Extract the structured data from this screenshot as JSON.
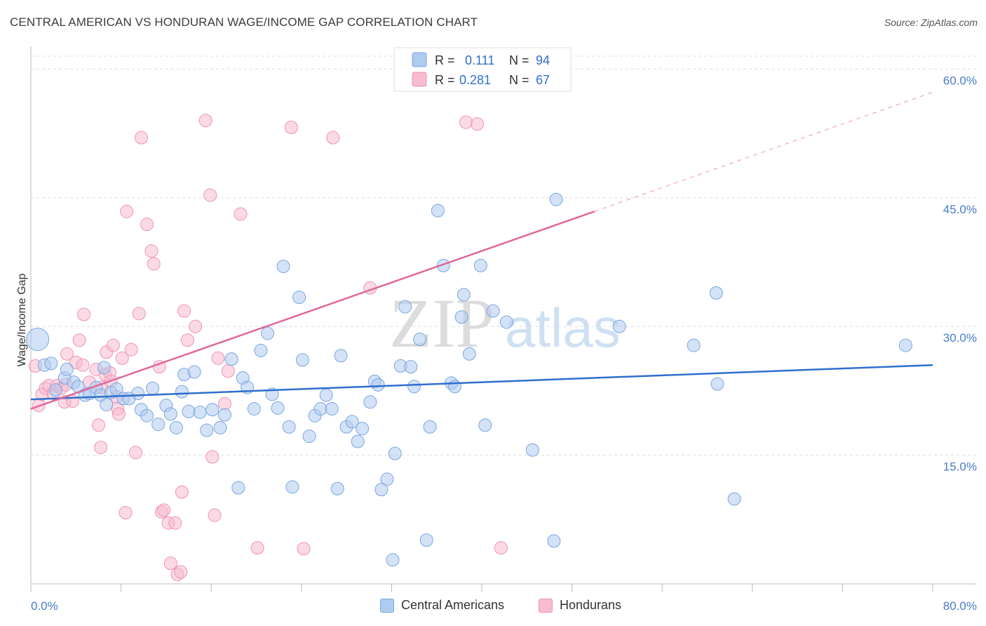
{
  "header": {
    "title": "CENTRAL AMERICAN VS HONDURAN WAGE/INCOME GAP CORRELATION CHART",
    "source": "Source: ZipAtlas.com"
  },
  "watermark": {
    "zip": "ZIP",
    "atlas": "atlas"
  },
  "legend": {
    "rows": [
      {
        "r_label": "R =",
        "r_value": "0.111",
        "n_label": "N =",
        "n_value": "94"
      },
      {
        "r_label": "R =",
        "r_value": "0.281",
        "n_label": "N =",
        "n_value": "67"
      }
    ]
  },
  "bottom_legend": {
    "items": [
      {
        "label": "Central Americans"
      },
      {
        "label": "Hondurans"
      }
    ]
  },
  "colors": {
    "blue_fill": "#aecbf0",
    "blue_stroke": "#7aa6e0",
    "blue_line": "#2f6fce",
    "pink_fill": "#f7bcd0",
    "pink_stroke": "#ee93b3",
    "pink_line": "#e0679a",
    "tick_text": "#4a7cc9",
    "grid": "#dddddd"
  },
  "chart_data": {
    "type": "scatter",
    "title": "CENTRAL AMERICAN VS HONDURAN WAGE/INCOME GAP CORRELATION CHART",
    "xlabel": "",
    "ylabel": "Wage/Income Gap",
    "xlim": [
      0,
      80
    ],
    "ylim": [
      0,
      61.5
    ],
    "x_tick_labels": [
      "0.0%",
      "80.0%"
    ],
    "y_ticks": [
      15,
      30,
      45,
      60
    ],
    "y_tick_labels": [
      "15.0%",
      "30.0%",
      "45.0%",
      "60.0%"
    ],
    "grid": true,
    "legend_position": "top-center",
    "series": [
      {
        "name": "Central Americans",
        "r": 0.111,
        "n": 94,
        "trend": {
          "x0": 0,
          "y0": 21.5,
          "x1": 80,
          "y1": 25.5
        },
        "points": [
          [
            0.6,
            28.5
          ],
          [
            1.2,
            25.5
          ],
          [
            1.8,
            25.7
          ],
          [
            2.2,
            22.6
          ],
          [
            3.0,
            24.0
          ],
          [
            3.2,
            25.0
          ],
          [
            3.8,
            23.5
          ],
          [
            4.2,
            23.0
          ],
          [
            4.8,
            22.0
          ],
          [
            5.2,
            22.2
          ],
          [
            5.8,
            22.9
          ],
          [
            6.2,
            22.0
          ],
          [
            6.5,
            25.2
          ],
          [
            6.7,
            20.9
          ],
          [
            7.1,
            22.3
          ],
          [
            7.6,
            22.7
          ],
          [
            8.2,
            21.6
          ],
          [
            8.7,
            21.6
          ],
          [
            9.5,
            22.2
          ],
          [
            9.8,
            20.3
          ],
          [
            10.3,
            19.6
          ],
          [
            10.8,
            22.8
          ],
          [
            11.3,
            18.6
          ],
          [
            12.0,
            20.8
          ],
          [
            12.4,
            19.8
          ],
          [
            12.9,
            18.2
          ],
          [
            13.4,
            22.4
          ],
          [
            13.6,
            24.4
          ],
          [
            14.0,
            20.1
          ],
          [
            14.5,
            24.7
          ],
          [
            15.0,
            20.0
          ],
          [
            15.6,
            17.9
          ],
          [
            16.1,
            20.3
          ],
          [
            16.8,
            18.2
          ],
          [
            17.2,
            19.7
          ],
          [
            17.8,
            26.2
          ],
          [
            18.4,
            11.2
          ],
          [
            18.8,
            24.0
          ],
          [
            19.2,
            22.9
          ],
          [
            19.8,
            20.4
          ],
          [
            20.4,
            27.2
          ],
          [
            21.0,
            29.2
          ],
          [
            21.4,
            22.1
          ],
          [
            21.9,
            20.5
          ],
          [
            22.4,
            37.0
          ],
          [
            22.9,
            18.3
          ],
          [
            23.2,
            11.3
          ],
          [
            23.8,
            33.4
          ],
          [
            24.1,
            26.1
          ],
          [
            24.7,
            17.2
          ],
          [
            25.2,
            19.6
          ],
          [
            25.7,
            20.4
          ],
          [
            26.2,
            22.0
          ],
          [
            26.7,
            20.4
          ],
          [
            27.2,
            11.1
          ],
          [
            27.5,
            26.6
          ],
          [
            28.0,
            18.3
          ],
          [
            28.5,
            18.9
          ],
          [
            29.0,
            16.6
          ],
          [
            29.4,
            18.1
          ],
          [
            30.1,
            21.2
          ],
          [
            30.5,
            23.6
          ],
          [
            30.8,
            23.2
          ],
          [
            31.1,
            11.0
          ],
          [
            31.6,
            12.2
          ],
          [
            32.1,
            2.8
          ],
          [
            32.3,
            15.2
          ],
          [
            32.8,
            25.4
          ],
          [
            33.2,
            32.3
          ],
          [
            33.7,
            25.3
          ],
          [
            34.0,
            23.0
          ],
          [
            34.5,
            28.5
          ],
          [
            35.1,
            5.1
          ],
          [
            35.4,
            18.3
          ],
          [
            36.1,
            43.5
          ],
          [
            36.6,
            37.1
          ],
          [
            37.3,
            23.4
          ],
          [
            37.6,
            23.0
          ],
          [
            38.2,
            31.1
          ],
          [
            38.4,
            33.7
          ],
          [
            38.9,
            26.8
          ],
          [
            39.9,
            37.1
          ],
          [
            40.3,
            18.5
          ],
          [
            41.0,
            31.8
          ],
          [
            42.2,
            30.5
          ],
          [
            44.5,
            15.6
          ],
          [
            46.4,
            5.0
          ],
          [
            46.6,
            44.8
          ],
          [
            52.2,
            30.0
          ],
          [
            58.8,
            27.8
          ],
          [
            60.8,
            33.9
          ],
          [
            60.9,
            23.3
          ],
          [
            62.4,
            9.9
          ],
          [
            77.6,
            27.8
          ]
        ]
      },
      {
        "name": "Hondurans",
        "r": 0.281,
        "n": 67,
        "trend": {
          "x0": 0,
          "y0": 20.4,
          "x1": 50,
          "y1": 43.4
        },
        "trend_dashed": {
          "x0": 50,
          "y0": 43.4,
          "x1": 80,
          "y1": 57.3
        },
        "points": [
          [
            0.4,
            25.4
          ],
          [
            0.7,
            20.8
          ],
          [
            1.0,
            22.1
          ],
          [
            1.3,
            22.8
          ],
          [
            1.6,
            23.1
          ],
          [
            2.0,
            22.2
          ],
          [
            2.3,
            23.1
          ],
          [
            2.7,
            22.8
          ],
          [
            3.0,
            21.2
          ],
          [
            3.1,
            23.2
          ],
          [
            3.2,
            26.8
          ],
          [
            3.7,
            21.3
          ],
          [
            4.0,
            25.8
          ],
          [
            4.3,
            28.4
          ],
          [
            4.6,
            25.5
          ],
          [
            4.7,
            31.4
          ],
          [
            5.2,
            23.5
          ],
          [
            5.8,
            25.0
          ],
          [
            6.0,
            18.5
          ],
          [
            6.2,
            15.9
          ],
          [
            6.3,
            22.9
          ],
          [
            6.6,
            24.4
          ],
          [
            6.7,
            27.0
          ],
          [
            7.0,
            24.6
          ],
          [
            7.1,
            23.6
          ],
          [
            7.3,
            27.8
          ],
          [
            7.6,
            21.8
          ],
          [
            7.7,
            20.4
          ],
          [
            7.8,
            19.8
          ],
          [
            8.1,
            26.3
          ],
          [
            8.4,
            8.3
          ],
          [
            8.5,
            43.4
          ],
          [
            8.9,
            27.3
          ],
          [
            9.3,
            15.3
          ],
          [
            9.6,
            31.5
          ],
          [
            9.8,
            52.0
          ],
          [
            10.3,
            41.9
          ],
          [
            10.7,
            38.8
          ],
          [
            10.9,
            37.3
          ],
          [
            11.4,
            25.3
          ],
          [
            11.6,
            8.4
          ],
          [
            11.8,
            8.6
          ],
          [
            12.2,
            7.1
          ],
          [
            12.4,
            2.4
          ],
          [
            12.8,
            7.1
          ],
          [
            13.0,
            1.1
          ],
          [
            13.3,
            1.4
          ],
          [
            13.4,
            10.7
          ],
          [
            13.6,
            31.8
          ],
          [
            13.9,
            28.4
          ],
          [
            14.6,
            30.0
          ],
          [
            15.5,
            54.0
          ],
          [
            15.9,
            45.3
          ],
          [
            16.1,
            14.8
          ],
          [
            16.3,
            8.0
          ],
          [
            16.6,
            26.3
          ],
          [
            17.2,
            21.0
          ],
          [
            17.5,
            24.8
          ],
          [
            18.6,
            43.1
          ],
          [
            20.1,
            4.2
          ],
          [
            23.1,
            53.2
          ],
          [
            24.2,
            4.1
          ],
          [
            26.8,
            52.0
          ],
          [
            30.1,
            34.5
          ],
          [
            38.6,
            53.8
          ],
          [
            39.6,
            53.6
          ],
          [
            41.7,
            4.2
          ]
        ]
      }
    ]
  }
}
